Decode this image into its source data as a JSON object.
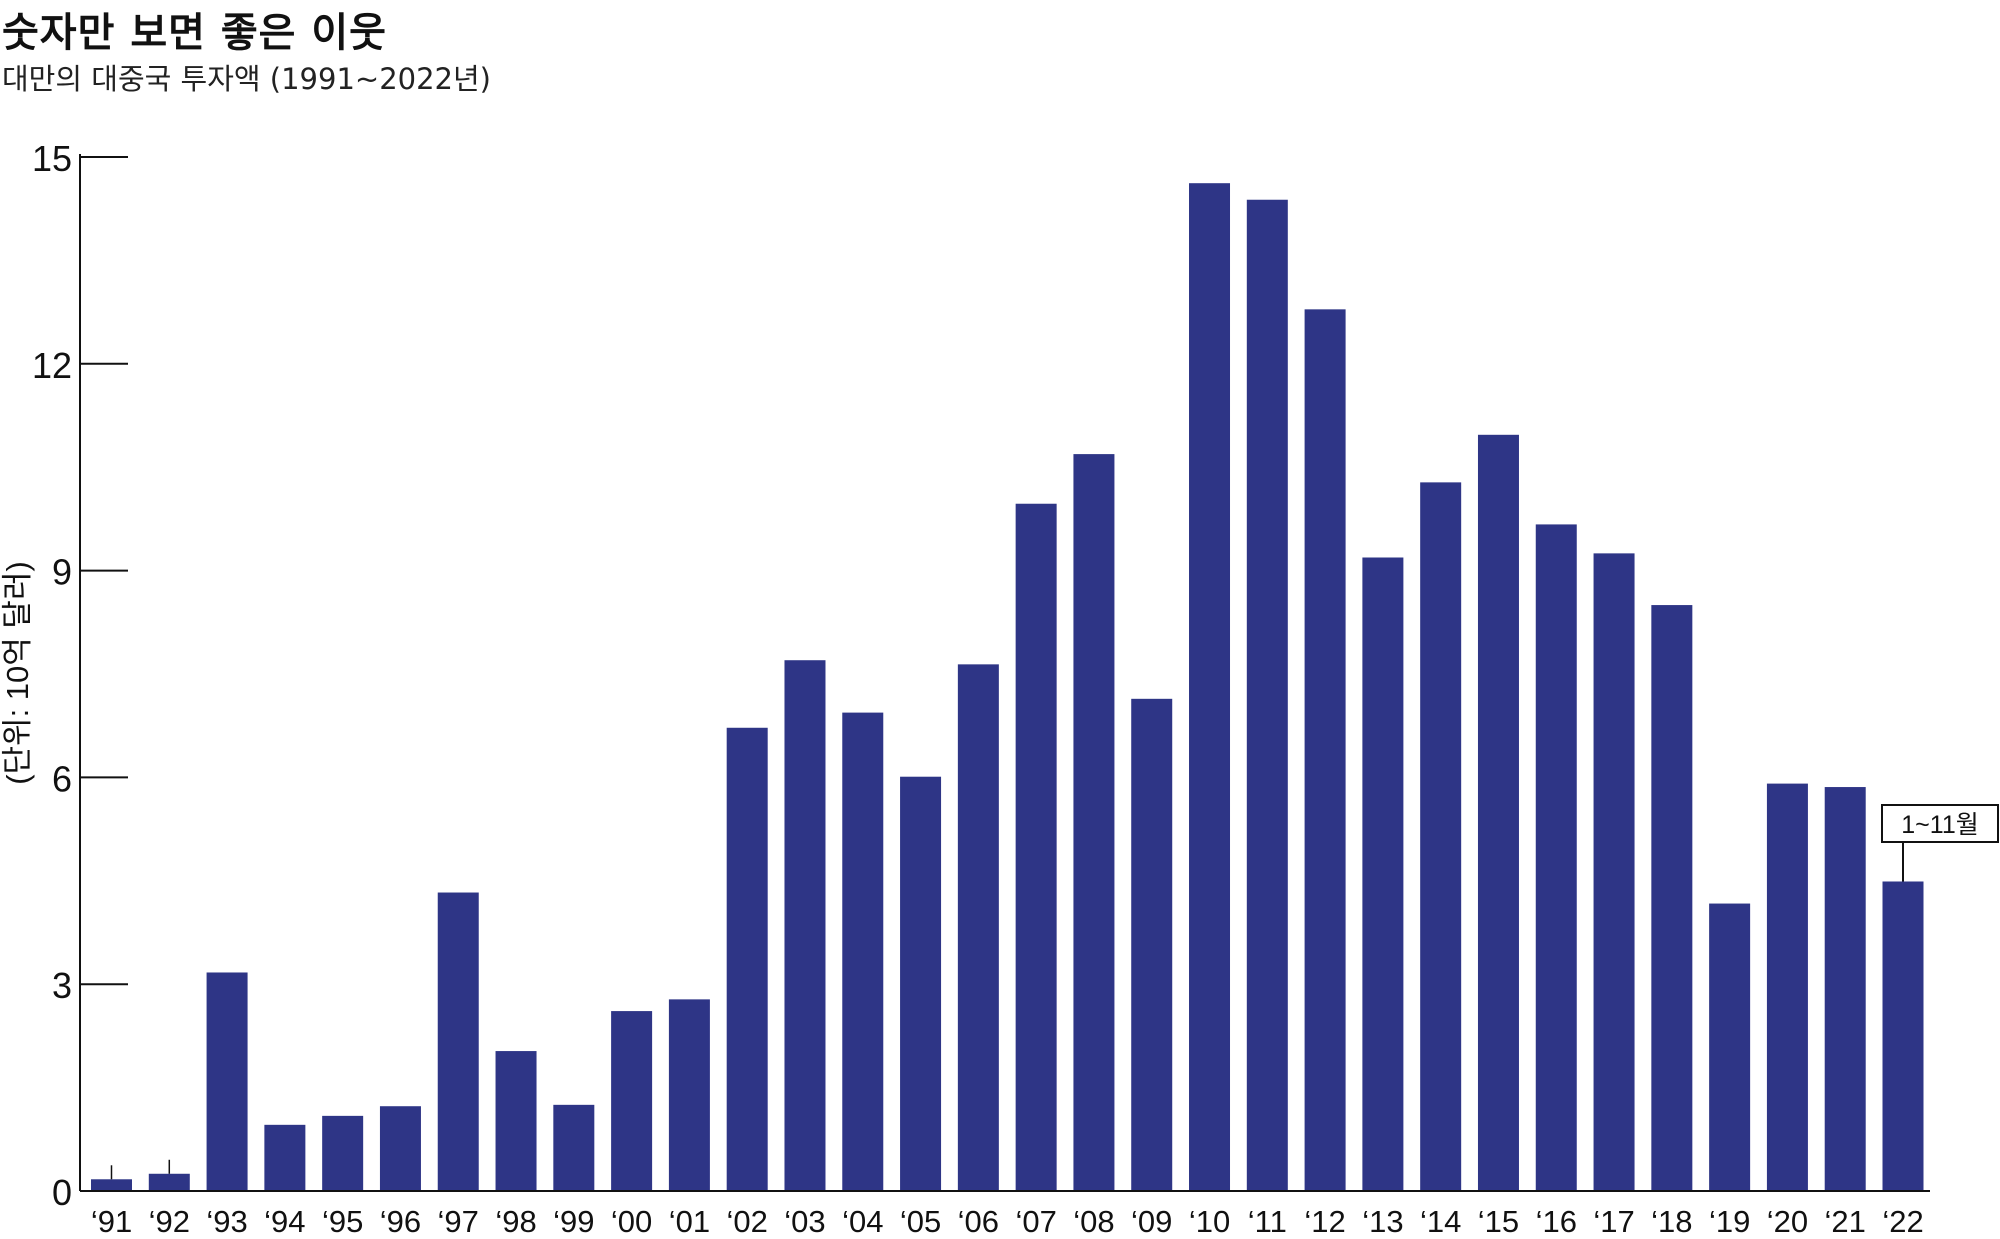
{
  "title": "숫자만 보면 좋은 이웃",
  "subtitle": "대만의 대중국 투자액 (1991~2022년)",
  "colors": {
    "bar": "#2e3586",
    "axis": "#111111"
  },
  "chart_data": {
    "type": "bar",
    "title": "숫자만 보면 좋은 이웃",
    "subtitle": "대만의 대중국 투자액 (1991~2022년)",
    "ylabel": "(단위: 10억 달러)",
    "xlabel": "",
    "ylim": [
      0,
      15
    ],
    "yticks": [
      0,
      3,
      6,
      9,
      12,
      15
    ],
    "categories": [
      "‘91",
      "‘92",
      "‘93",
      "‘94",
      "‘95",
      "‘96",
      "‘97",
      "‘98",
      "‘99",
      "‘00",
      "‘01",
      "‘02",
      "‘03",
      "‘04",
      "‘05",
      "‘06",
      "‘07",
      "‘08",
      "‘09",
      "‘10",
      "‘11",
      "‘12",
      "‘13",
      "‘14",
      "‘15",
      "‘16",
      "‘17",
      "‘18",
      "‘19",
      "‘20",
      "‘21",
      "‘22"
    ],
    "values": [
      0.17,
      0.25,
      3.17,
      0.96,
      1.09,
      1.23,
      4.33,
      2.03,
      1.25,
      2.61,
      2.78,
      6.72,
      7.7,
      6.94,
      6.01,
      7.64,
      9.97,
      10.69,
      7.14,
      14.62,
      14.38,
      12.79,
      9.19,
      10.28,
      10.97,
      9.67,
      9.25,
      8.5,
      4.17,
      5.91,
      5.86,
      4.49
    ],
    "annotations": [
      {
        "category": "‘22",
        "text": "1~11월"
      }
    ],
    "grid": false,
    "legend": "none"
  }
}
